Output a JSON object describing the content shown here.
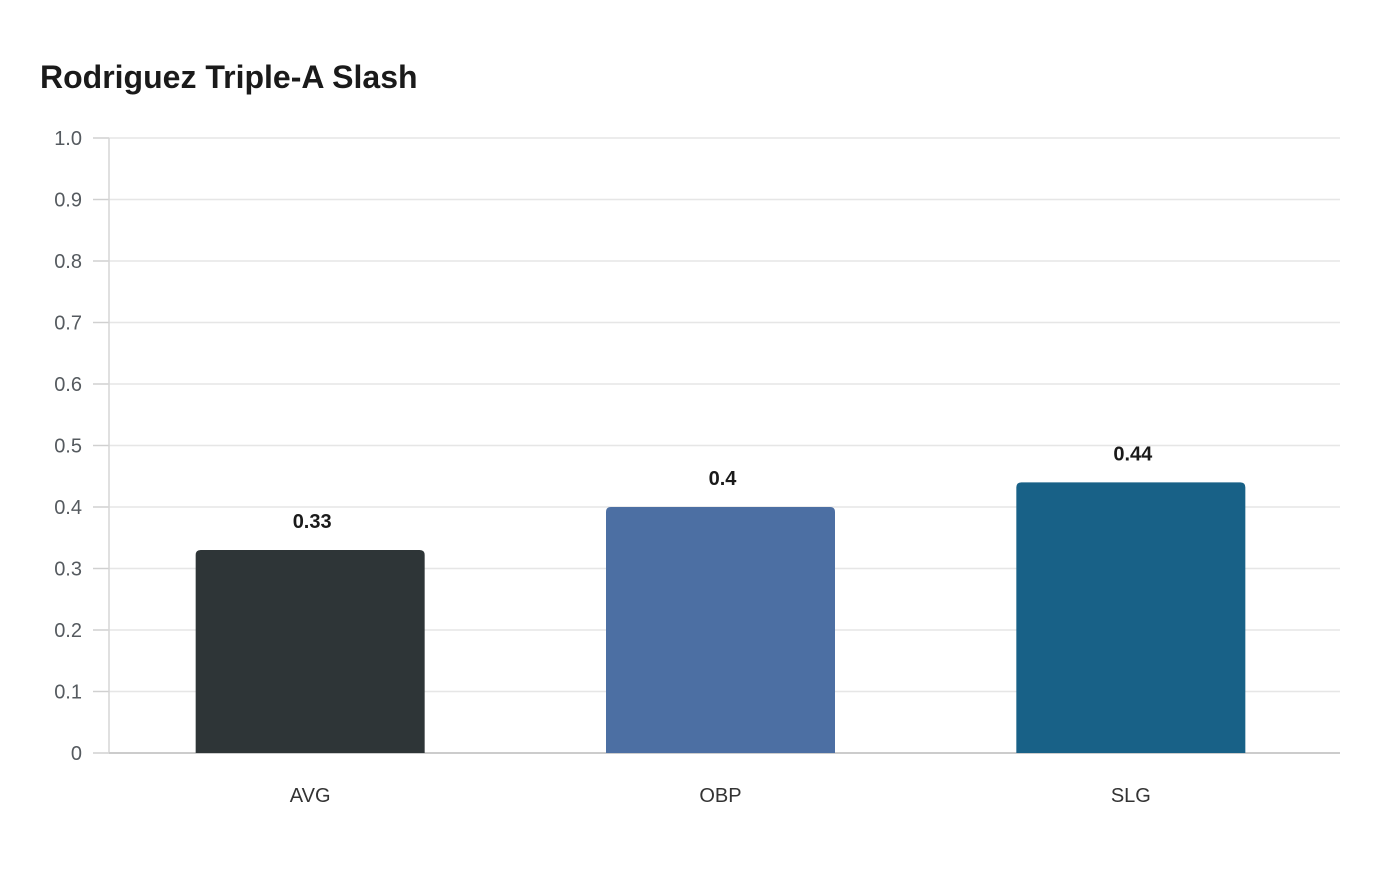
{
  "chart_data": {
    "type": "bar",
    "title": "Rodriguez Triple-A Slash",
    "xlabel": "",
    "ylabel": "",
    "categories": [
      "AVG",
      "OBP",
      "SLG"
    ],
    "values": [
      0.33,
      0.4,
      0.44
    ],
    "value_labels": [
      "0.33",
      "0.4",
      "0.44"
    ],
    "colors": [
      "#2e3537",
      "#4c6fa3",
      "#186187"
    ],
    "ylim": [
      0,
      1.0
    ],
    "yticks": [
      0,
      0.1,
      0.2,
      0.3,
      0.4,
      0.5,
      0.6,
      0.7,
      0.8,
      0.9,
      1.0
    ],
    "ytick_labels": [
      "0",
      "0.1",
      "0.2",
      "0.3",
      "0.4",
      "0.5",
      "0.6",
      "0.7",
      "0.8",
      "0.9",
      "1.0"
    ],
    "grid": true,
    "legend": "none"
  }
}
